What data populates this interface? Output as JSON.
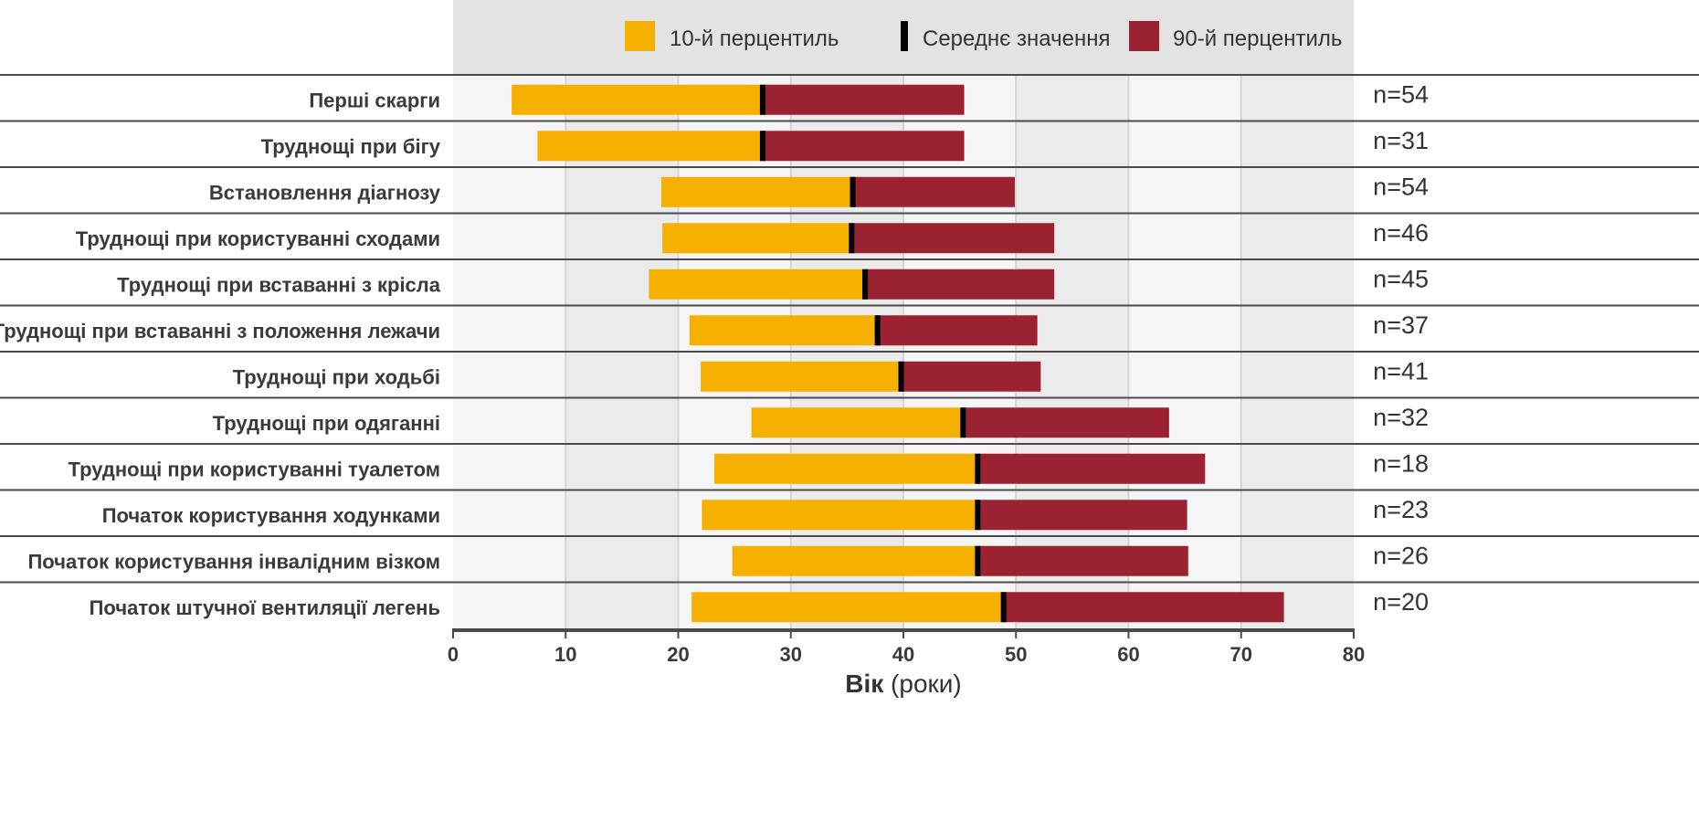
{
  "chart_data": {
    "type": "bar",
    "subtype": "horizontal-stacked-range",
    "xlabel_bold": "Вік",
    "xlabel_rest": " (роки)",
    "xlim": [
      0,
      80
    ],
    "xticks": [
      0,
      10,
      20,
      30,
      40,
      50,
      60,
      70,
      80
    ],
    "grid": true,
    "legend_position": "top",
    "legend": [
      {
        "label": "10-й перцентиль",
        "color": "#F5B000"
      },
      {
        "label": "Середнє значення",
        "color": "#000000"
      },
      {
        "label": "90-й перцентиль",
        "color": "#9B2231"
      }
    ],
    "categories": [
      "Перші скарги",
      "Труднощі при бігу",
      "Встановлення діагнозу",
      "Труднощі при користуванні сходами",
      "Труднощі при вставанні з крісла",
      "Труднощі при вставанні з положення лежачи",
      "Труднощі при ходьбі",
      "Труднощі при одяганні",
      "Труднощі при користуванні туалетом",
      "Початок користування ходунками",
      "Початок користування інвалідним візком",
      "Початок штучної вентиляції легень"
    ],
    "series": [
      {
        "name": "10-й перцентиль",
        "values": [
          5.2,
          7.5,
          18.5,
          18.6,
          17.4,
          21.0,
          22.0,
          26.5,
          23.2,
          22.1,
          24.8,
          21.2
        ]
      },
      {
        "name": "Середнє значення",
        "values": [
          27.5,
          27.5,
          35.5,
          35.4,
          36.6,
          37.7,
          39.8,
          45.3,
          46.6,
          46.6,
          46.6,
          48.9
        ]
      },
      {
        "name": "90-й перцентиль",
        "values": [
          45.4,
          45.4,
          49.9,
          53.4,
          53.4,
          51.9,
          52.2,
          63.6,
          66.8,
          65.2,
          65.3,
          73.8
        ]
      }
    ],
    "n_labels": [
      "n=54",
      "n=31",
      "n=54",
      "n=46",
      "n=45",
      "n=37",
      "n=41",
      "n=32",
      "n=18",
      "n=23",
      "n=26",
      "n=20"
    ],
    "colors": {
      "p10": "#F5B000",
      "mean": "#000000",
      "p90": "#9B2231",
      "band_dark": "#EBEBEB",
      "band_light": "#F5F5F5",
      "legend_bg": "#E3E3E3"
    }
  }
}
